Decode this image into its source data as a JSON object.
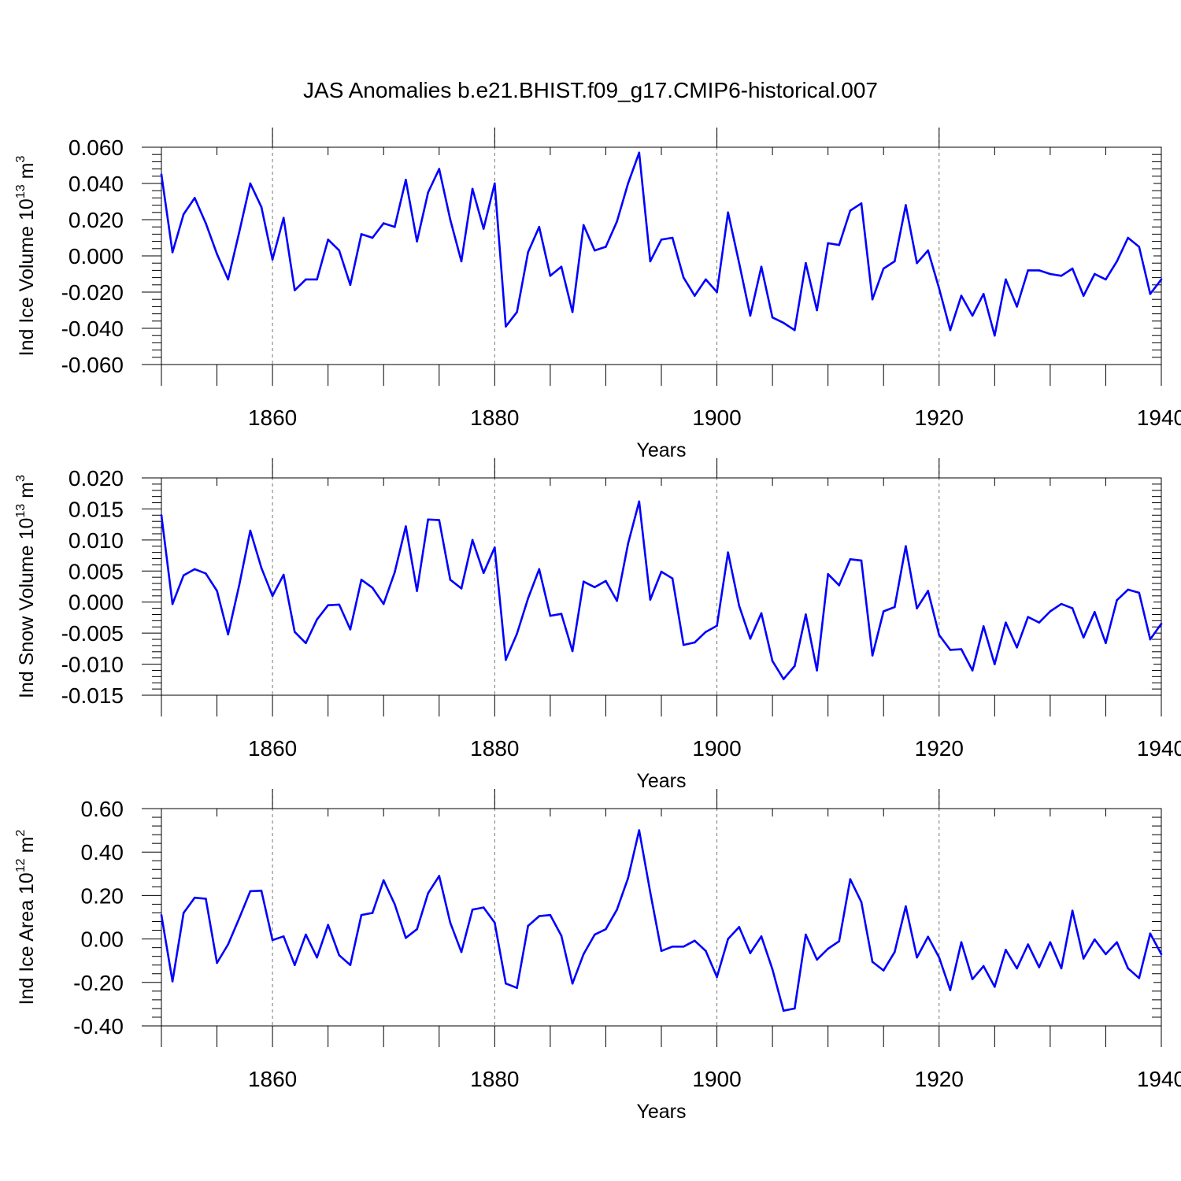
{
  "title": "JAS Anomalies b.e21.BHIST.f09_g17.CMIP6-historical.007",
  "line_color": "#0000ff",
  "chart_data": [
    {
      "type": "line",
      "ylabel_main": "Ind Ice Volume 10",
      "ylabel_exp": "13",
      "ylabel_unit": "m",
      "ylabel_unit_exp": "3",
      "xlabel": "Years",
      "xlim": [
        1850,
        1940
      ],
      "ylim": [
        -0.06,
        0.06
      ],
      "xticks": [
        1860,
        1880,
        1900,
        1920,
        1940
      ],
      "xtick_labels": [
        "1860",
        "1880",
        "1900",
        "1920",
        "1940"
      ],
      "yticks": [
        0.06,
        0.04,
        0.02,
        0.0,
        -0.02,
        -0.04,
        -0.06
      ],
      "ytick_labels": [
        "0.060",
        "0.040",
        "0.020",
        "0.000",
        "-0.020",
        "-0.040",
        "-0.060"
      ],
      "x_start": 1850,
      "values": [
        0.045,
        0.002,
        0.023,
        0.032,
        0.018,
        0.001,
        -0.013,
        0.013,
        0.04,
        0.027,
        -0.002,
        0.021,
        -0.019,
        -0.013,
        -0.013,
        0.009,
        0.003,
        -0.016,
        0.012,
        0.01,
        0.018,
        0.016,
        0.042,
        0.008,
        0.035,
        0.048,
        0.02,
        -0.003,
        0.037,
        0.015,
        0.04,
        -0.039,
        -0.031,
        0.002,
        0.016,
        -0.011,
        -0.006,
        -0.031,
        0.017,
        0.003,
        0.005,
        0.019,
        0.04,
        0.057,
        -0.003,
        0.009,
        0.01,
        -0.012,
        -0.022,
        -0.013,
        -0.02,
        0.024,
        -0.004,
        -0.033,
        -0.006,
        -0.034,
        -0.037,
        -0.041,
        -0.004,
        -0.03,
        0.007,
        0.006,
        0.025,
        0.029,
        -0.024,
        -0.007,
        -0.003,
        0.028,
        -0.004,
        0.003,
        -0.018,
        -0.041,
        -0.022,
        -0.033,
        -0.021,
        -0.044,
        -0.013,
        -0.028,
        -0.008,
        -0.008,
        -0.01,
        -0.011,
        -0.007,
        -0.022,
        -0.01,
        -0.013,
        -0.003,
        0.01,
        0.005,
        -0.021,
        -0.013
      ]
    },
    {
      "type": "line",
      "ylabel_main": "Ind Snow Volume 10",
      "ylabel_exp": "13",
      "ylabel_unit": "m",
      "ylabel_unit_exp": "3",
      "xlabel": "Years",
      "xlim": [
        1850,
        1940
      ],
      "ylim": [
        -0.015,
        0.02
      ],
      "xticks": [
        1860,
        1880,
        1900,
        1920,
        1940
      ],
      "xtick_labels": [
        "1860",
        "1880",
        "1900",
        "1920",
        "1940"
      ],
      "yticks": [
        0.02,
        0.015,
        0.01,
        0.005,
        0.0,
        -0.005,
        -0.01,
        -0.015
      ],
      "ytick_labels": [
        "0.020",
        "0.015",
        "0.010",
        "0.005",
        "0.000",
        "-0.005",
        "-0.010",
        "-0.015"
      ],
      "x_start": 1850,
      "values": [
        0.014,
        -0.0003,
        0.0043,
        0.0053,
        0.0046,
        0.0018,
        -0.0052,
        0.0027,
        0.0115,
        0.0055,
        0.001,
        0.0044,
        -0.0048,
        -0.0066,
        -0.0028,
        -0.0005,
        -0.0004,
        -0.0044,
        0.0036,
        0.0023,
        -0.0003,
        0.0048,
        0.0122,
        0.0018,
        0.0133,
        0.0132,
        0.0036,
        0.0022,
        0.01,
        0.0047,
        0.0088,
        -0.0093,
        -0.0051,
        0.0006,
        0.0053,
        -0.0022,
        -0.0019,
        -0.0079,
        0.0033,
        0.0024,
        0.0034,
        0.0002,
        0.0094,
        0.0162,
        0.0004,
        0.0049,
        0.0038,
        -0.0069,
        -0.0065,
        -0.0048,
        -0.0038,
        0.008,
        -0.0006,
        -0.0059,
        -0.0018,
        -0.0095,
        -0.0124,
        -0.0103,
        -0.002,
        -0.011,
        0.0045,
        0.0027,
        0.0069,
        0.0067,
        -0.0086,
        -0.0015,
        -0.0008,
        0.009,
        -0.001,
        0.0018,
        -0.0053,
        -0.0077,
        -0.0076,
        -0.011,
        -0.0039,
        -0.01,
        -0.0033,
        -0.0073,
        -0.0024,
        -0.0033,
        -0.0015,
        -0.0003,
        -0.001,
        -0.0057,
        -0.0016,
        -0.0066,
        0.0003,
        0.002,
        0.0015,
        -0.006,
        -0.0035
      ]
    },
    {
      "type": "line",
      "ylabel_main": "Ind Ice Area 10",
      "ylabel_exp": "12",
      "ylabel_unit": "m",
      "ylabel_unit_exp": "2",
      "xlabel": "Years",
      "xlim": [
        1850,
        1940
      ],
      "ylim": [
        -0.4,
        0.6
      ],
      "xticks": [
        1860,
        1880,
        1900,
        1920,
        1940
      ],
      "xtick_labels": [
        "1860",
        "1880",
        "1900",
        "1920",
        "1940"
      ],
      "yticks": [
        0.6,
        0.4,
        0.2,
        0.0,
        -0.2,
        -0.4
      ],
      "ytick_labels": [
        "0.60",
        "0.40",
        "0.20",
        "0.00",
        "-0.20",
        "-0.40"
      ],
      "x_start": 1850,
      "values": [
        0.11,
        -0.195,
        0.12,
        0.19,
        0.185,
        -0.11,
        -0.025,
        0.095,
        0.22,
        0.222,
        -0.005,
        0.012,
        -0.12,
        0.02,
        -0.085,
        0.065,
        -0.075,
        -0.12,
        0.11,
        0.12,
        0.27,
        0.16,
        0.005,
        0.045,
        0.21,
        0.29,
        0.075,
        -0.06,
        0.135,
        0.145,
        0.075,
        -0.205,
        -0.225,
        0.06,
        0.105,
        0.11,
        0.015,
        -0.205,
        -0.07,
        0.02,
        0.045,
        0.135,
        0.28,
        0.5,
        0.215,
        -0.055,
        -0.035,
        -0.035,
        -0.008,
        -0.055,
        -0.175,
        0.0,
        0.055,
        -0.065,
        0.012,
        -0.14,
        -0.33,
        -0.32,
        0.02,
        -0.095,
        -0.045,
        -0.01,
        0.275,
        0.17,
        -0.105,
        -0.145,
        -0.06,
        0.15,
        -0.085,
        0.01,
        -0.085,
        -0.235,
        -0.015,
        -0.185,
        -0.125,
        -0.22,
        -0.05,
        -0.135,
        -0.025,
        -0.13,
        -0.015,
        -0.135,
        0.13,
        -0.09,
        -0.002,
        -0.07,
        -0.015,
        -0.135,
        -0.18,
        0.025,
        -0.07
      ]
    }
  ]
}
